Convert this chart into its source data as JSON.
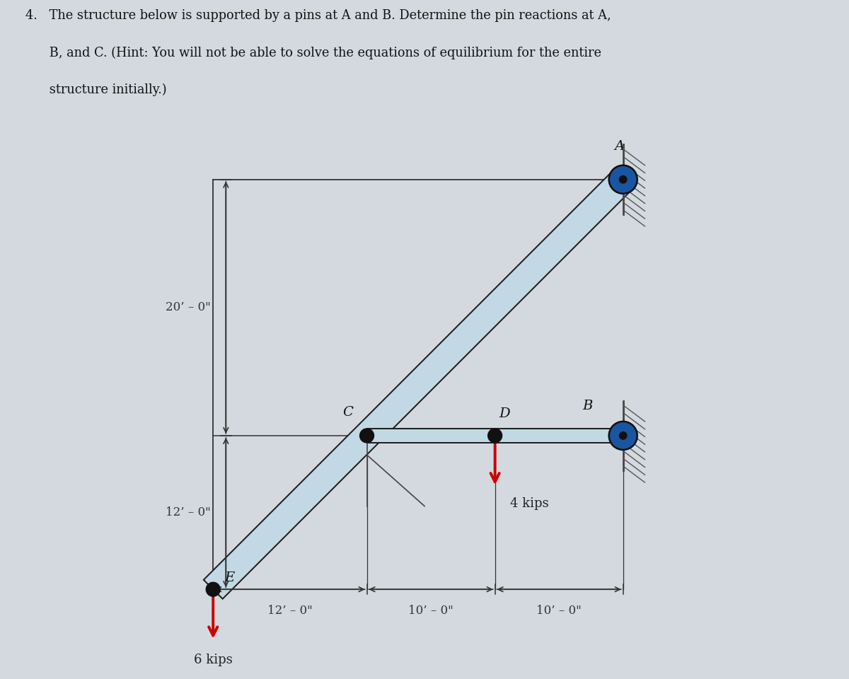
{
  "bg_color": "#d4d9df",
  "inner_bg": "#e8ecee",
  "beam_color": "#c2d8e4",
  "beam_edge_color": "#1a1a1a",
  "pin_color": "#1a55a0",
  "pin_edge_color": "#111111",
  "dot_color": "#111111",
  "load_color": "#cc0000",
  "dim_color": "#333333",
  "hatch_color": "#555555",
  "ref_line_color": "#333333",
  "label_fontsize": 13,
  "title_fontsize": 12.8,
  "dim_fontsize": 12,
  "title_line1": "4.   The structure below is supported by a pins at A and B. Determine the pin reactions at A,",
  "title_line2": "      B, and C. (Hint: You will not be able to solve the equations of equilibrium for the entire",
  "title_line3": "      structure initially.)",
  "label_A": "A",
  "label_B": "B",
  "label_C": "C",
  "label_D": "D",
  "label_E": "E",
  "load_6kips": "6 kips",
  "load_4kips": "4 kips",
  "dim_20ft": "20’ – 0\"",
  "dim_12ft_v": "12’ – 0\"",
  "dim_12ft_h": "12’ – 0\"",
  "dim_10ft_1": "10’ – 0\"",
  "dim_10ft_2": "10’ – 0\"",
  "E": [
    0.0,
    0.0
  ],
  "C": [
    12.0,
    12.0
  ],
  "D": [
    22.0,
    12.0
  ],
  "B": [
    32.0,
    12.0
  ],
  "A": [
    32.0,
    32.0
  ],
  "TL": [
    0.0,
    32.0
  ]
}
